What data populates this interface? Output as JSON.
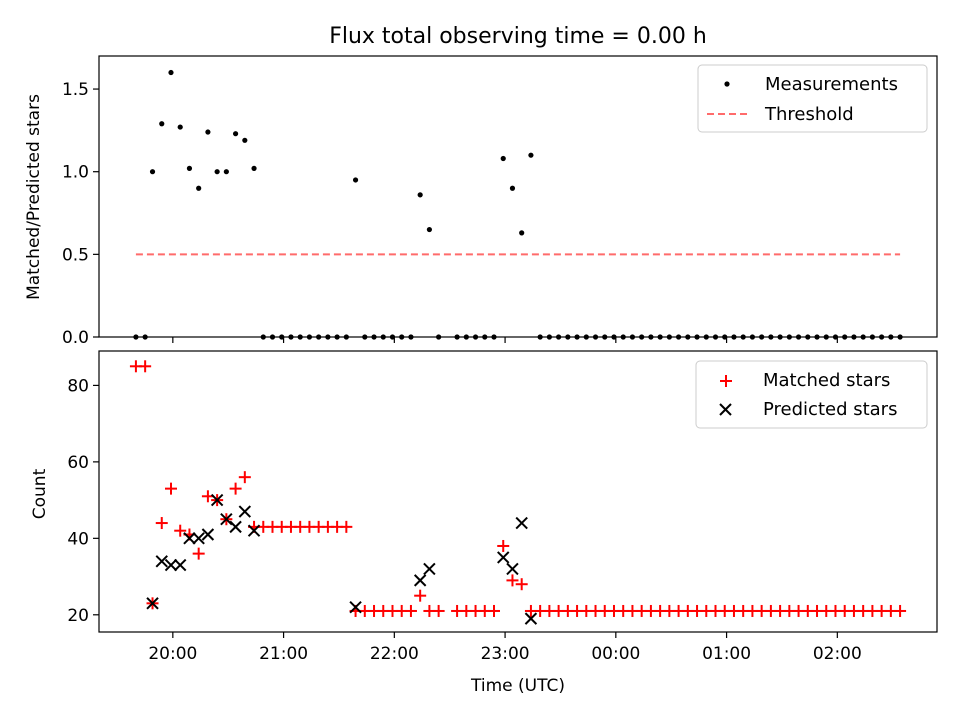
{
  "title": "Flux total observing time = 0.00 h",
  "chart_data": [
    {
      "type": "scatter",
      "ylabel": "Matched/Predicted stars",
      "ylim": [
        0,
        1.7
      ],
      "yticks": [
        0.0,
        0.5,
        1.0,
        1.5
      ],
      "ytick_labels": [
        "0.0",
        "0.5",
        "1.0",
        "1.5"
      ],
      "legend_position": "top-right",
      "series": [
        {
          "name": "Measurements",
          "marker": "dot",
          "color": "#000000",
          "points": [
            [
              "19:40",
              0
            ],
            [
              "19:45",
              0
            ],
            [
              "19:49",
              1.0
            ],
            [
              "19:54",
              1.29
            ],
            [
              "19:59",
              1.6
            ],
            [
              "20:04",
              1.27
            ],
            [
              "20:09",
              1.02
            ],
            [
              "20:14",
              0.9
            ],
            [
              "20:19",
              1.24
            ],
            [
              "20:24",
              1.0
            ],
            [
              "20:29",
              1.0
            ],
            [
              "20:34",
              1.23
            ],
            [
              "20:39",
              1.19
            ],
            [
              "20:44",
              1.02
            ],
            [
              "20:49",
              0
            ],
            [
              "20:54",
              0
            ],
            [
              "20:59",
              0
            ],
            [
              "21:04",
              0
            ],
            [
              "21:09",
              0
            ],
            [
              "21:14",
              0
            ],
            [
              "21:19",
              0
            ],
            [
              "21:24",
              0
            ],
            [
              "21:29",
              0
            ],
            [
              "21:34",
              0
            ],
            [
              "21:39",
              0.95
            ],
            [
              "21:44",
              0
            ],
            [
              "21:49",
              0
            ],
            [
              "21:54",
              0
            ],
            [
              "21:59",
              0
            ],
            [
              "22:04",
              0
            ],
            [
              "22:09",
              0
            ],
            [
              "22:14",
              0.86
            ],
            [
              "22:19",
              0.65
            ],
            [
              "22:24",
              0
            ],
            [
              "22:34",
              0
            ],
            [
              "22:39",
              0
            ],
            [
              "22:44",
              0
            ],
            [
              "22:49",
              0
            ],
            [
              "22:54",
              0
            ],
            [
              "22:59",
              1.08
            ],
            [
              "23:04",
              0.9
            ],
            [
              "23:09",
              0.63
            ],
            [
              "23:14",
              1.1
            ],
            [
              "23:19",
              0
            ],
            [
              "23:24",
              0
            ],
            [
              "23:29",
              0
            ],
            [
              "23:34",
              0
            ],
            [
              "23:39",
              0
            ],
            [
              "23:44",
              0
            ],
            [
              "23:49",
              0
            ],
            [
              "23:54",
              0
            ],
            [
              "23:59",
              0
            ],
            [
              "00:04",
              0
            ],
            [
              "00:09",
              0
            ],
            [
              "00:14",
              0
            ],
            [
              "00:19",
              0
            ],
            [
              "00:24",
              0
            ],
            [
              "00:29",
              0
            ],
            [
              "00:34",
              0
            ],
            [
              "00:39",
              0
            ],
            [
              "00:44",
              0
            ],
            [
              "00:49",
              0
            ],
            [
              "00:54",
              0
            ],
            [
              "00:59",
              0
            ],
            [
              "01:04",
              0
            ],
            [
              "01:09",
              0
            ],
            [
              "01:14",
              0
            ],
            [
              "01:19",
              0
            ],
            [
              "01:24",
              0
            ],
            [
              "01:29",
              0
            ],
            [
              "01:34",
              0
            ],
            [
              "01:39",
              0
            ],
            [
              "01:44",
              0
            ],
            [
              "01:49",
              0
            ],
            [
              "01:54",
              0
            ],
            [
              "01:59",
              0
            ],
            [
              "02:04",
              0
            ],
            [
              "02:09",
              0
            ],
            [
              "02:14",
              0
            ],
            [
              "02:19",
              0
            ],
            [
              "02:24",
              0
            ],
            [
              "02:29",
              0
            ],
            [
              "02:34",
              0
            ]
          ]
        },
        {
          "name": "Threshold",
          "type": "line",
          "style": "dashed",
          "color": "#ff6b6b",
          "x": [
            "19:40",
            "02:34"
          ],
          "y": [
            0.5,
            0.5
          ]
        }
      ]
    },
    {
      "type": "scatter",
      "xlabel": "Time (UTC)",
      "ylabel": "Count",
      "ylim": [
        15.5,
        89
      ],
      "yticks": [
        20,
        40,
        60,
        80
      ],
      "ytick_labels": [
        "20",
        "40",
        "60",
        "80"
      ],
      "xlim": [
        "19:20",
        "02:54"
      ],
      "xticks": [
        "20:00",
        "21:00",
        "22:00",
        "23:00",
        "00:00",
        "01:00",
        "02:00"
      ],
      "legend_position": "top-right",
      "series": [
        {
          "name": "Matched stars",
          "marker": "plus",
          "color": "#ff0000",
          "points": [
            [
              "19:40",
              85
            ],
            [
              "19:45",
              85
            ],
            [
              "19:49",
              23
            ],
            [
              "19:54",
              44
            ],
            [
              "19:59",
              53
            ],
            [
              "20:04",
              42
            ],
            [
              "20:09",
              41
            ],
            [
              "20:14",
              36
            ],
            [
              "20:19",
              51
            ],
            [
              "20:24",
              50
            ],
            [
              "20:29",
              45
            ],
            [
              "20:34",
              53
            ],
            [
              "20:39",
              56
            ],
            [
              "20:44",
              43
            ],
            [
              "20:49",
              43
            ],
            [
              "20:54",
              43
            ],
            [
              "20:59",
              43
            ],
            [
              "21:04",
              43
            ],
            [
              "21:09",
              43
            ],
            [
              "21:14",
              43
            ],
            [
              "21:19",
              43
            ],
            [
              "21:24",
              43
            ],
            [
              "21:29",
              43
            ],
            [
              "21:34",
              43
            ],
            [
              "21:39",
              21
            ],
            [
              "21:44",
              21
            ],
            [
              "21:49",
              21
            ],
            [
              "21:54",
              21
            ],
            [
              "21:59",
              21
            ],
            [
              "22:04",
              21
            ],
            [
              "22:09",
              21
            ],
            [
              "22:14",
              25
            ],
            [
              "22:19",
              21
            ],
            [
              "22:24",
              21
            ],
            [
              "22:34",
              21
            ],
            [
              "22:39",
              21
            ],
            [
              "22:44",
              21
            ],
            [
              "22:49",
              21
            ],
            [
              "22:54",
              21
            ],
            [
              "22:59",
              38
            ],
            [
              "23:04",
              29
            ],
            [
              "23:09",
              28
            ],
            [
              "23:14",
              21
            ],
            [
              "23:19",
              21
            ],
            [
              "23:24",
              21
            ],
            [
              "23:29",
              21
            ],
            [
              "23:34",
              21
            ],
            [
              "23:39",
              21
            ],
            [
              "23:44",
              21
            ],
            [
              "23:49",
              21
            ],
            [
              "23:54",
              21
            ],
            [
              "23:59",
              21
            ],
            [
              "00:04",
              21
            ],
            [
              "00:09",
              21
            ],
            [
              "00:14",
              21
            ],
            [
              "00:19",
              21
            ],
            [
              "00:24",
              21
            ],
            [
              "00:29",
              21
            ],
            [
              "00:34",
              21
            ],
            [
              "00:39",
              21
            ],
            [
              "00:44",
              21
            ],
            [
              "00:49",
              21
            ],
            [
              "00:54",
              21
            ],
            [
              "00:59",
              21
            ],
            [
              "01:04",
              21
            ],
            [
              "01:09",
              21
            ],
            [
              "01:14",
              21
            ],
            [
              "01:19",
              21
            ],
            [
              "01:24",
              21
            ],
            [
              "01:29",
              21
            ],
            [
              "01:34",
              21
            ],
            [
              "01:39",
              21
            ],
            [
              "01:44",
              21
            ],
            [
              "01:49",
              21
            ],
            [
              "01:54",
              21
            ],
            [
              "01:59",
              21
            ],
            [
              "02:04",
              21
            ],
            [
              "02:09",
              21
            ],
            [
              "02:14",
              21
            ],
            [
              "02:19",
              21
            ],
            [
              "02:24",
              21
            ],
            [
              "02:29",
              21
            ],
            [
              "02:34",
              21
            ]
          ]
        },
        {
          "name": "Predicted stars",
          "marker": "x",
          "color": "#000000",
          "points": [
            [
              "19:49",
              23
            ],
            [
              "19:54",
              34
            ],
            [
              "19:59",
              33
            ],
            [
              "20:04",
              33
            ],
            [
              "20:09",
              40
            ],
            [
              "20:14",
              40
            ],
            [
              "20:19",
              41
            ],
            [
              "20:24",
              50
            ],
            [
              "20:29",
              45
            ],
            [
              "20:34",
              43
            ],
            [
              "20:39",
              47
            ],
            [
              "20:44",
              42
            ],
            [
              "21:39",
              22
            ],
            [
              "22:14",
              29
            ],
            [
              "22:19",
              32
            ],
            [
              "22:59",
              35
            ],
            [
              "23:04",
              32
            ],
            [
              "23:09",
              44
            ],
            [
              "23:14",
              19
            ]
          ]
        }
      ]
    }
  ]
}
